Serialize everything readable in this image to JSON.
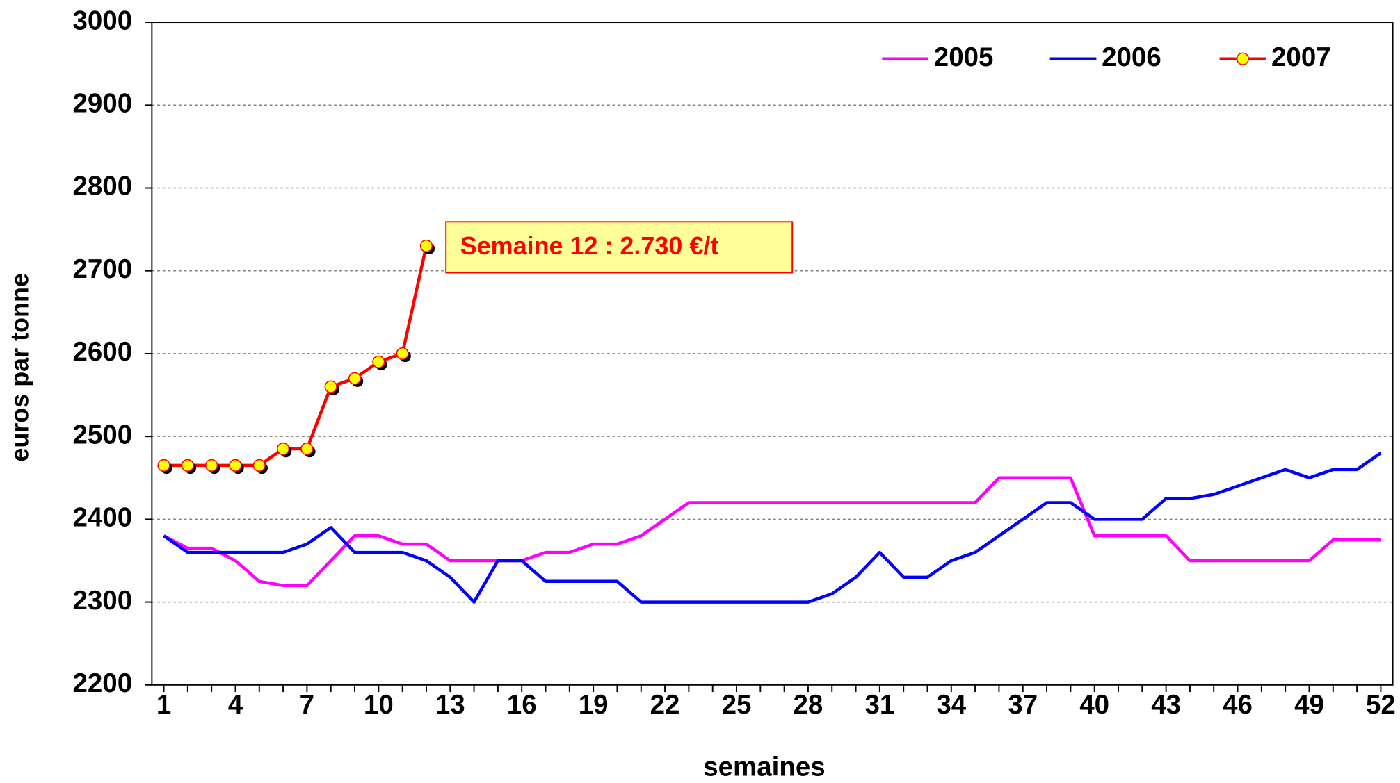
{
  "chart_data": {
    "type": "line",
    "x": [
      1,
      2,
      3,
      4,
      5,
      6,
      7,
      8,
      9,
      10,
      11,
      12,
      13,
      14,
      15,
      16,
      17,
      18,
      19,
      20,
      21,
      22,
      23,
      24,
      25,
      26,
      27,
      28,
      29,
      30,
      31,
      32,
      33,
      34,
      35,
      36,
      37,
      38,
      39,
      40,
      41,
      42,
      43,
      44,
      45,
      46,
      47,
      48,
      49,
      50,
      51,
      52
    ],
    "xlim": [
      0.5,
      52.5
    ],
    "xticks": [
      1,
      4,
      7,
      10,
      13,
      16,
      19,
      22,
      25,
      28,
      31,
      34,
      37,
      40,
      43,
      46,
      49,
      52
    ],
    "ylim": [
      2200,
      3000
    ],
    "yticks": [
      2200,
      2300,
      2400,
      2500,
      2600,
      2700,
      2800,
      2900,
      3000
    ],
    "grid": true,
    "xlabel": "semaines",
    "ylabel": "euros par tonne",
    "legend": "upper right",
    "annotation": "Semaine 12 : 2.730 €/t",
    "series": [
      {
        "name": "2005",
        "color": "#ff00ff",
        "values": [
          2380,
          2365,
          2365,
          2350,
          2325,
          2320,
          2320,
          2350,
          2380,
          2380,
          2370,
          2370,
          2350,
          2350,
          2350,
          2350,
          2360,
          2360,
          2370,
          2370,
          2380,
          2400,
          2420,
          2420,
          2420,
          2420,
          2420,
          2420,
          2420,
          2420,
          2420,
          2420,
          2420,
          2420,
          2420,
          2450,
          2450,
          2450,
          2450,
          2380,
          2380,
          2380,
          2380,
          2350,
          2350,
          2350,
          2350,
          2350,
          2350,
          2375,
          2375,
          2375
        ]
      },
      {
        "name": "2006",
        "color": "#0000ff",
        "values": [
          2380,
          2360,
          2360,
          2360,
          2360,
          2360,
          2370,
          2390,
          2360,
          2360,
          2360,
          2350,
          2330,
          2300,
          2350,
          2350,
          2325,
          2325,
          2325,
          2325,
          2300,
          2300,
          2300,
          2300,
          2300,
          2300,
          2300,
          2300,
          2310,
          2330,
          2360,
          2330,
          2330,
          2350,
          2360,
          2380,
          2400,
          2420,
          2420,
          2400,
          2400,
          2400,
          2425,
          2425,
          2430,
          2440,
          2450,
          2460,
          2450,
          2460,
          2460,
          2480
        ]
      },
      {
        "name": "2007",
        "color": "#ff0000",
        "marker_color": "#ffff00",
        "values": [
          2465,
          2465,
          2465,
          2465,
          2465,
          2485,
          2485,
          2560,
          2570,
          2590,
          2600,
          2730,
          null,
          null,
          null,
          null,
          null,
          null,
          null,
          null,
          null,
          null,
          null,
          null,
          null,
          null,
          null,
          null,
          null,
          null,
          null,
          null,
          null,
          null,
          null,
          null,
          null,
          null,
          null,
          null,
          null,
          null,
          null,
          null,
          null,
          null,
          null,
          null,
          null,
          null,
          null,
          null
        ]
      }
    ]
  }
}
